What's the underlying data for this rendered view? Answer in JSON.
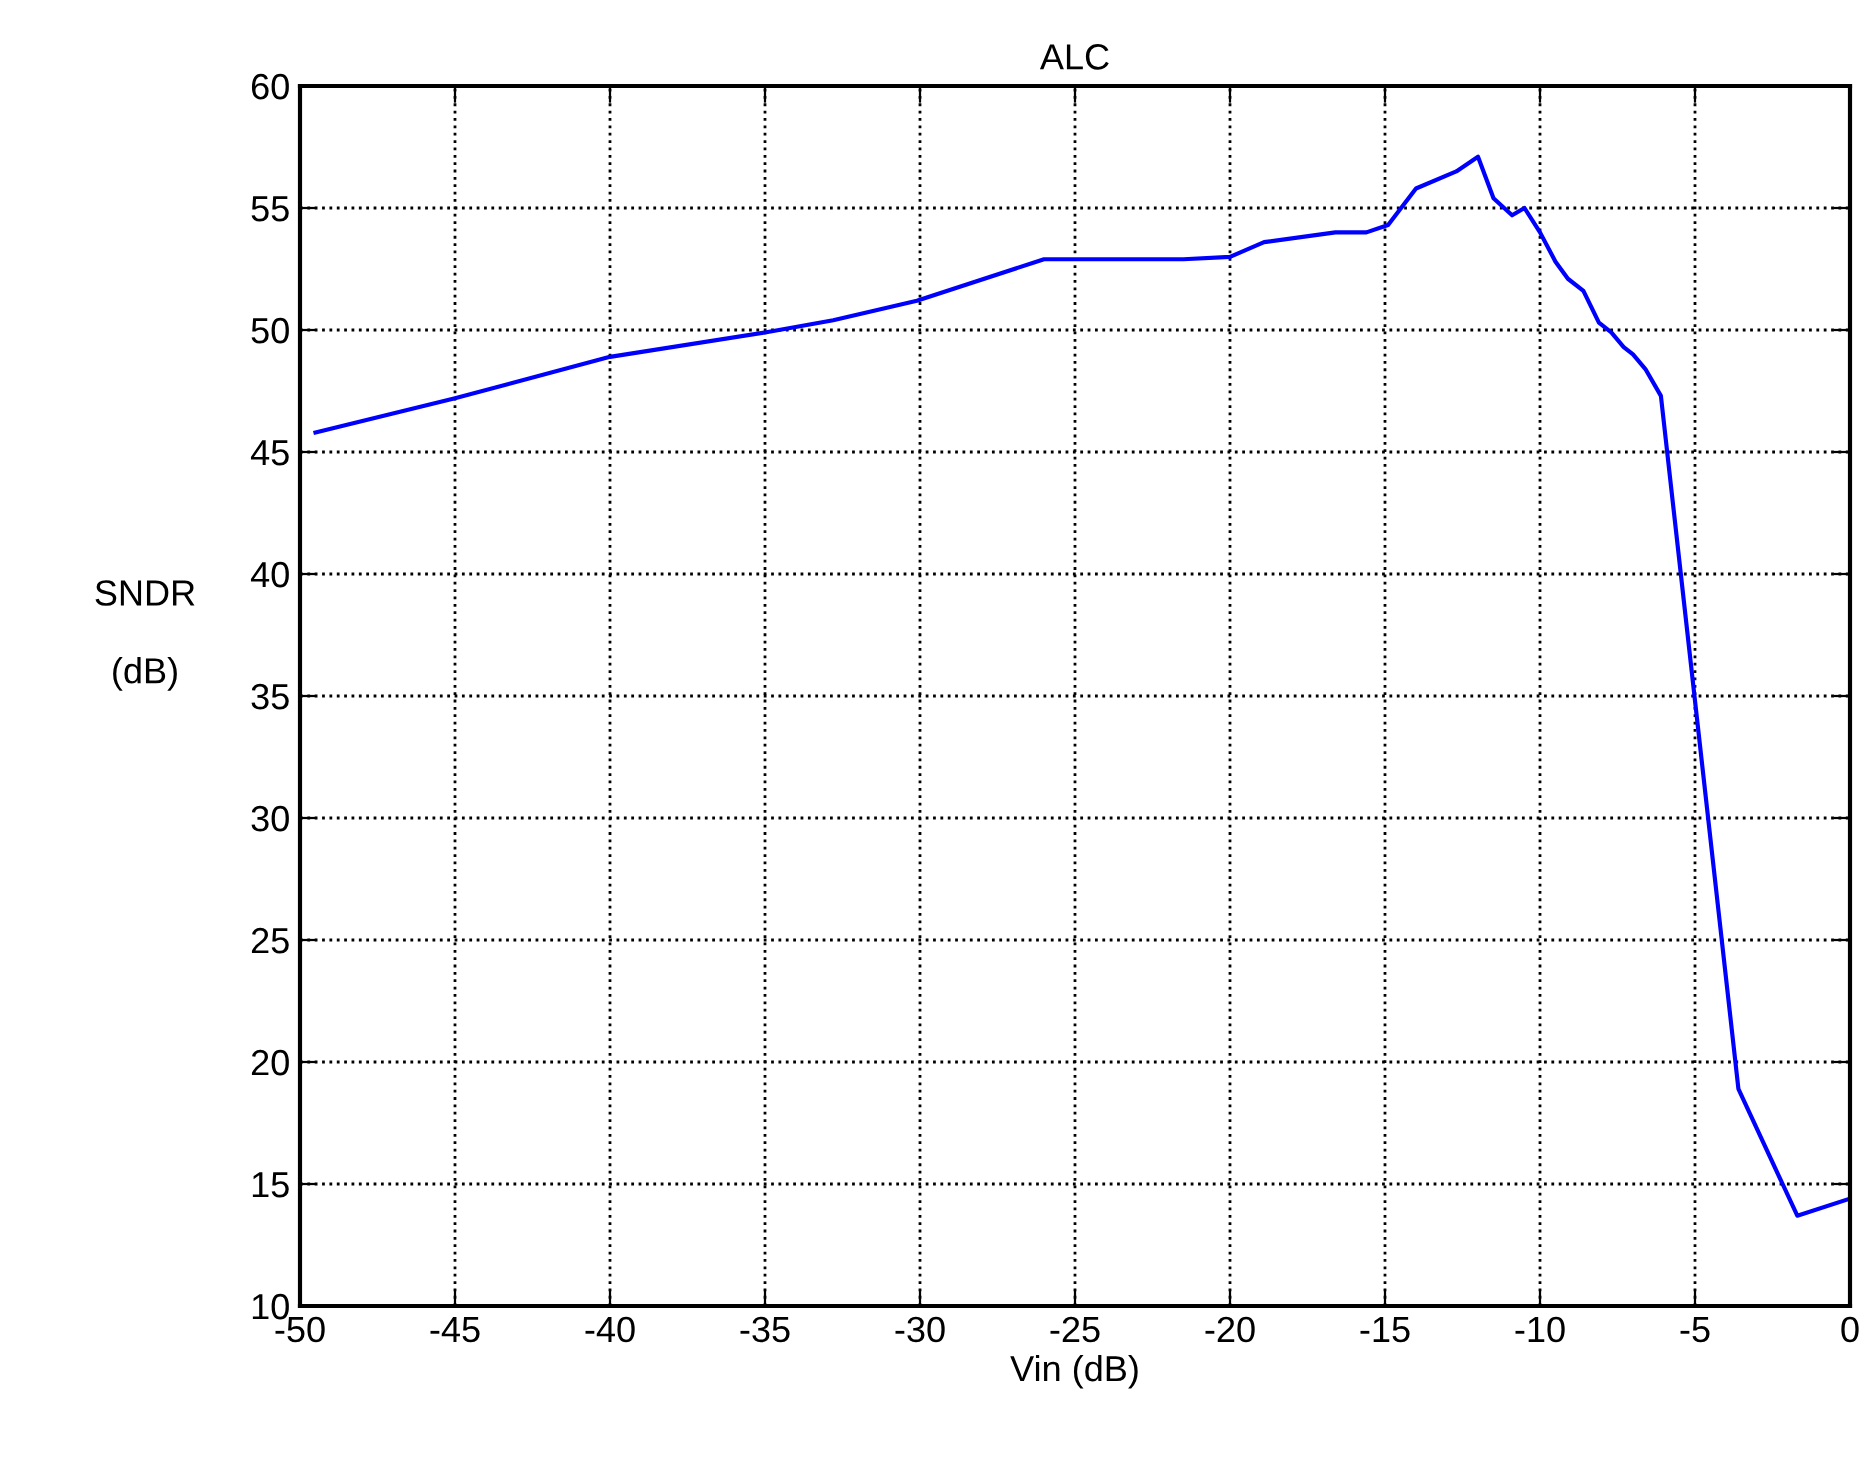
{
  "chart_data": {
    "type": "line",
    "title": "ALC",
    "xlabel": "Vin (dB)",
    "ylabel": "SNDR\n\n(dB)",
    "x": [
      -49.5,
      -45,
      -40,
      -35,
      -32.8,
      -30.1,
      -26.0,
      -21.5,
      -20,
      -18.9,
      -16.6,
      -15.6,
      -14.9,
      -14.0,
      -12.7,
      -12.0,
      -11.5,
      -10.9,
      -10.5,
      -10.0,
      -9.5,
      -9.1,
      -8.6,
      -8.1,
      -7.7,
      -7.3,
      -7.0,
      -6.6,
      -6.1,
      -3.6,
      -1.7,
      0
    ],
    "series": [
      {
        "color": "#0000ff",
        "values": [
          45.8,
          47.2,
          48.9,
          49.9,
          50.4,
          51.2,
          52.9,
          52.9,
          53.0,
          53.6,
          54.0,
          54.0,
          54.3,
          55.8,
          56.5,
          57.1,
          55.4,
          54.7,
          55.0,
          54.0,
          52.8,
          52.1,
          51.6,
          50.3,
          49.9,
          49.3,
          49.0,
          48.4,
          47.3,
          18.9,
          13.7,
          14.4
        ]
      }
    ],
    "xlim": [
      -50,
      0
    ],
    "ylim": [
      10,
      60
    ],
    "xticks": [
      -50,
      -45,
      -40,
      -35,
      -30,
      -25,
      -20,
      -15,
      -10,
      -5,
      0
    ],
    "yticks": [
      10,
      15,
      20,
      25,
      30,
      35,
      40,
      45,
      50,
      55,
      60
    ],
    "grid": true,
    "line_style": "solid",
    "marker": "none"
  }
}
